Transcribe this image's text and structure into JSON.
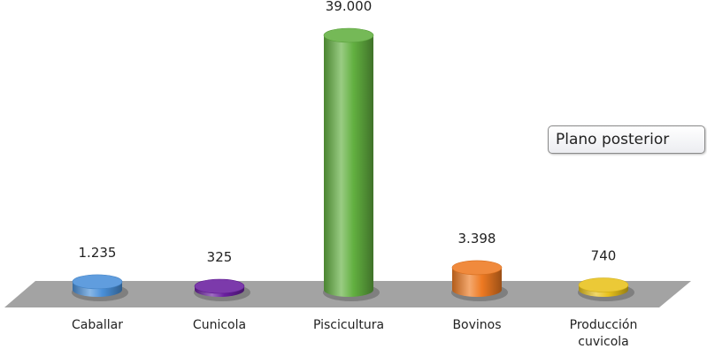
{
  "chart_data": {
    "type": "bar",
    "categories": [
      "Caballar",
      "Cunicola",
      "Piscicultura",
      "Bovinos",
      "Producción cuvicola"
    ],
    "values": [
      1235,
      325,
      39000,
      3398,
      740
    ],
    "data_labels": [
      "1.235",
      "325",
      "39.000",
      "3.398",
      "740"
    ],
    "colors": [
      "#4a90d9",
      "#6a1fa0",
      "#62b040",
      "#ee7a22",
      "#e8c21c"
    ],
    "floor_color": "#a3a3a3",
    "title": "",
    "xlabel": "",
    "ylabel": "",
    "ylim": [
      0,
      39000
    ],
    "grid": false,
    "legend": "none"
  },
  "tooltip": {
    "text": "Plano posterior"
  }
}
